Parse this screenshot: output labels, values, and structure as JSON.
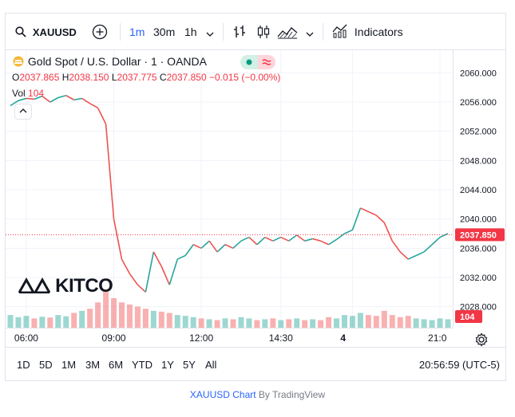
{
  "toolbar": {
    "symbol": "XAUUSD",
    "intervals": [
      "1m",
      "30m",
      "1h"
    ],
    "active_interval": "1m",
    "indicators_label": "Indicators",
    "icons": [
      "search-icon",
      "add-compare-icon",
      "chevron-down-icon",
      "bar-style-icon",
      "candle-style-icon",
      "area-style-icon",
      "indicators-icon"
    ]
  },
  "legend": {
    "title": "Gold Spot / U.S. Dollar · 1 · OANDA",
    "o_key": "O",
    "o_val": "2037.865",
    "h_key": "H",
    "h_val": "2038.150",
    "l_key": "L",
    "l_val": "2037.775",
    "c_key": "C",
    "c_val": "2037.850",
    "change": "−0.015 (−0.00%)",
    "vol_key": "Vol",
    "vol_val": "104"
  },
  "watermark": "KITCO",
  "current_price_label": "2037.850",
  "current_volume_label": "104",
  "bottom": {
    "ranges": [
      "1D",
      "5D",
      "1M",
      "3M",
      "6M",
      "YTD",
      "1Y",
      "5Y",
      "All"
    ],
    "clock": "20:56:59 (UTC-5)"
  },
  "footer": {
    "link": "XAUUSD Chart",
    "by": " By TradingView"
  },
  "colors": {
    "up": "#26a69a",
    "down": "#ef5350",
    "accent": "#2962ff",
    "price_line": "#f23645"
  },
  "chart_data": {
    "type": "line",
    "title": "Gold Spot / U.S. Dollar · 1 · OANDA",
    "ylim": [
      2026,
      2062
    ],
    "yticks": [
      "2060.000",
      "2056.000",
      "2052.000",
      "2048.000",
      "2044.000",
      "2040.000",
      "2036.000",
      "2032.000",
      "2028.000"
    ],
    "ytick_values": [
      2060,
      2056,
      2052,
      2048,
      2044,
      2040,
      2036,
      2032,
      2028
    ],
    "xtick_labels": [
      "06:00",
      "09:00",
      "12:00",
      "14:30",
      "4",
      "21:0"
    ],
    "xtick_index": [
      2,
      13,
      24,
      34,
      43,
      54
    ],
    "x_count": 56,
    "series": [
      {
        "values": [
          2055.5,
          2056.2,
          2056.5,
          2056.4,
          2056.8,
          2056.0,
          2056.6,
          2056.9,
          2056.3,
          2056.5,
          2055.8,
          2055.2,
          2053.0,
          2040.0,
          2034.5,
          2032.5,
          2031.0,
          2030.0,
          2035.5,
          2033.5,
          2031.0,
          2034.5,
          2035.0,
          2036.5,
          2036.0,
          2037.0,
          2035.5,
          2036.5,
          2036.0,
          2037.0,
          2037.5,
          2036.5,
          2037.5,
          2037.0,
          2037.5,
          2037.0,
          2037.8,
          2037.0,
          2037.3,
          2037.0,
          2036.5,
          2037.2,
          2038.0,
          2038.5,
          2041.5,
          2041.0,
          2040.5,
          2039.5,
          2037.0,
          2035.5,
          2034.5,
          2035.0,
          2035.5,
          2036.5,
          2037.5,
          2038.0
        ]
      }
    ],
    "volume": [
      30,
      25,
      28,
      22,
      26,
      24,
      30,
      27,
      35,
      40,
      45,
      60,
      85,
      70,
      60,
      55,
      50,
      45,
      40,
      38,
      35,
      30,
      28,
      25,
      22,
      20,
      18,
      22,
      20,
      25,
      22,
      18,
      20,
      22,
      18,
      20,
      22,
      18,
      20,
      18,
      25,
      22,
      30,
      28,
      35,
      30,
      28,
      40,
      30,
      25,
      28,
      22,
      20,
      18,
      22,
      20
    ],
    "current": 2037.85
  }
}
